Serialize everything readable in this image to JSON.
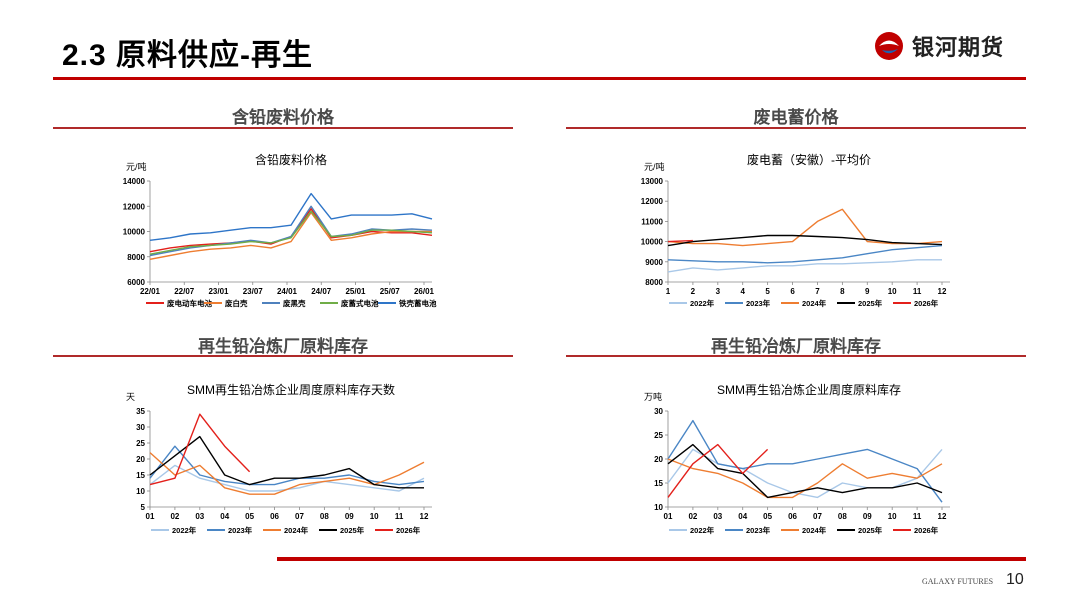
{
  "page": {
    "title": "2.3  原料供应-再生",
    "brand_name": "银河期货",
    "footer_brand": "GALAXY FUTURES",
    "page_number": "10"
  },
  "colors": {
    "accent": "#c00000",
    "brand_blue": "#1f5fae"
  },
  "sections": [
    {
      "title": "含铅废料价格"
    },
    {
      "title": "废电蓄价格"
    },
    {
      "title": "再生铅冶炼厂原料库存"
    },
    {
      "title": "再生铅冶炼厂原料库存"
    }
  ],
  "chart_data": [
    {
      "type": "line",
      "title": "含铅废料价格",
      "ylabel": "元/吨",
      "ylim": [
        6000,
        14000
      ],
      "yticks": [
        "6000",
        "8000",
        "10000",
        "12000",
        "14000"
      ],
      "xticks": [
        "22/01",
        "22/07",
        "23/01",
        "23/07",
        "24/01",
        "24/07",
        "25/01",
        "25/07",
        "26/01"
      ],
      "series": [
        {
          "name": "废电动车电池",
          "color": "#e3201b",
          "values": [
            8400,
            8700,
            8900,
            9000,
            9100,
            9250,
            9000,
            9600,
            11800,
            9500,
            9700,
            10000,
            9900,
            9900,
            9700
          ]
        },
        {
          "name": "废白壳",
          "color": "#ee7d31",
          "values": [
            7800,
            8100,
            8400,
            8600,
            8700,
            8900,
            8700,
            9200,
            11500,
            9300,
            9500,
            9800,
            10000,
            10000,
            10000
          ]
        },
        {
          "name": "废黑壳",
          "color": "#4f81bd",
          "values": [
            8100,
            8400,
            8700,
            8900,
            9100,
            9300,
            9100,
            9600,
            12000,
            9600,
            9800,
            10200,
            10100,
            10200,
            10100
          ]
        },
        {
          "name": "废蓄式电池",
          "color": "#70ad47",
          "values": [
            8200,
            8500,
            8800,
            8900,
            9000,
            9200,
            9100,
            9500,
            11600,
            9600,
            9700,
            10100,
            10100,
            10000,
            9900
          ]
        },
        {
          "name": "铁壳蓄电池",
          "color": "#2e75c8",
          "values": [
            9300,
            9500,
            9800,
            9900,
            10100,
            10300,
            10300,
            10500,
            13000,
            11000,
            11300,
            11300,
            11300,
            11400,
            11000
          ]
        }
      ]
    },
    {
      "type": "line",
      "title": "废电蓄（安徽）-平均价",
      "ylabel": "元/吨",
      "ylim": [
        8000,
        13000
      ],
      "yticks": [
        "8000",
        "9000",
        "10000",
        "11000",
        "12000",
        "13000"
      ],
      "xticks": [
        "1",
        "2",
        "3",
        "4",
        "5",
        "6",
        "7",
        "8",
        "9",
        "10",
        "11",
        "12"
      ],
      "series": [
        {
          "name": "2022年",
          "color": "#a9c8e8",
          "values": [
            8500,
            8700,
            8600,
            8700,
            8800,
            8800,
            8900,
            8900,
            8950,
            9000,
            9100,
            9100
          ]
        },
        {
          "name": "2023年",
          "color": "#4a86c5",
          "values": [
            9100,
            9050,
            9000,
            9000,
            8950,
            9000,
            9100,
            9200,
            9400,
            9600,
            9700,
            9800
          ]
        },
        {
          "name": "2024年",
          "color": "#ee7d31",
          "values": [
            10000,
            9900,
            9900,
            9800,
            9900,
            10000,
            11000,
            11600,
            10000,
            9900,
            9900,
            10000
          ]
        },
        {
          "name": "2025年",
          "color": "#000000",
          "values": [
            9800,
            10000,
            10100,
            10200,
            10300,
            10300,
            10250,
            10200,
            10100,
            9950,
            9900,
            9850
          ]
        },
        {
          "name": "2026年",
          "color": "#e3201b",
          "values": [
            10000,
            10050
          ]
        }
      ]
    },
    {
      "type": "line",
      "title": "SMM再生铅冶炼企业周度原料库存天数",
      "ylabel": "天",
      "ylim": [
        5,
        35
      ],
      "yticks": [
        "5",
        "10",
        "15",
        "20",
        "25",
        "30",
        "35"
      ],
      "xticks": [
        "01",
        "02",
        "03",
        "04",
        "05",
        "06",
        "07",
        "08",
        "09",
        "10",
        "11",
        "12"
      ],
      "series": [
        {
          "name": "2022年",
          "color": "#a9c8e8",
          "values": [
            12,
            18,
            14,
            12,
            10,
            10,
            11,
            13,
            12,
            11,
            10,
            14
          ]
        },
        {
          "name": "2023年",
          "color": "#4a86c5",
          "values": [
            14,
            24,
            15,
            13,
            12,
            12,
            14,
            14,
            15,
            13,
            12,
            13
          ]
        },
        {
          "name": "2024年",
          "color": "#ee7d31",
          "values": [
            22,
            15,
            18,
            11,
            9,
            9,
            12,
            13,
            14,
            12,
            15,
            19
          ]
        },
        {
          "name": "2025年",
          "color": "#000000",
          "values": [
            15,
            21,
            27,
            15,
            12,
            14,
            14,
            15,
            17,
            12,
            11,
            11
          ]
        },
        {
          "name": "2026年",
          "color": "#e3201b",
          "values": [
            12,
            14,
            34,
            24,
            16
          ]
        }
      ]
    },
    {
      "type": "line",
      "title": "SMM再生铅冶炼企业周度原料库存",
      "ylabel": "万吨",
      "ylim": [
        10,
        30
      ],
      "yticks": [
        "10",
        "15",
        "20",
        "25",
        "30"
      ],
      "xticks": [
        "01",
        "02",
        "03",
        "04",
        "05",
        "06",
        "07",
        "08",
        "09",
        "10",
        "11",
        "12"
      ],
      "series": [
        {
          "name": "2022年",
          "color": "#a9c8e8",
          "values": [
            15,
            22,
            19,
            18,
            15,
            13,
            12,
            15,
            14,
            14,
            16,
            22
          ]
        },
        {
          "name": "2023年",
          "color": "#4a86c5",
          "values": [
            20,
            28,
            19,
            18,
            19,
            19,
            20,
            21,
            22,
            20,
            18,
            11
          ]
        },
        {
          "name": "2024年",
          "color": "#ee7d31",
          "values": [
            20,
            18,
            17,
            15,
            12,
            12,
            15,
            19,
            16,
            17,
            16,
            19
          ]
        },
        {
          "name": "2025年",
          "color": "#000000",
          "values": [
            19,
            23,
            18,
            17,
            12,
            13,
            14,
            13,
            14,
            14,
            15,
            13
          ]
        },
        {
          "name": "2026年",
          "color": "#e3201b",
          "values": [
            12,
            19,
            23,
            17,
            22
          ]
        }
      ]
    }
  ]
}
